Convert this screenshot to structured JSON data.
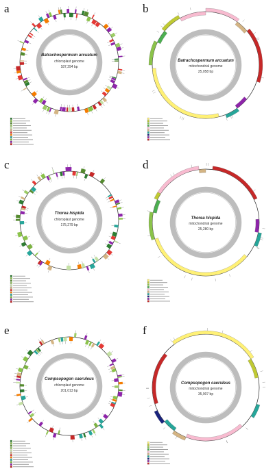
{
  "panels": [
    {
      "letter": "a",
      "species": "Batrachospermum arcuatum",
      "genome": "chloroplast genome",
      "size": "187,294 bp",
      "type": "cp"
    },
    {
      "letter": "b",
      "species": "Batrachospermum arcuatum",
      "genome": "mitochondrial genome",
      "size": "25,058 bp",
      "type": "mt"
    },
    {
      "letter": "c",
      "species": "Thorea hispida",
      "genome": "chloroplast genome",
      "size": "175,279 bp",
      "type": "cp"
    },
    {
      "letter": "d",
      "species": "Thorea hispida",
      "genome": "mitochondrial genome",
      "size": "25,280 bp",
      "type": "mt"
    },
    {
      "letter": "e",
      "species": "Compsopogon caeruleus",
      "genome": "chloroplast genome",
      "size": "201,013 bp",
      "type": "cp"
    },
    {
      "letter": "f",
      "species": "Compsopogon caeruleus",
      "genome": "mitochondrial genome",
      "size": "35,907 bp",
      "type": "mt"
    }
  ],
  "colors": {
    "photosystem_i": "#2e7d32",
    "photosystem_ii": "#8bc34a",
    "cytochrome": "#558b2f",
    "atp_synthase": "#9ccc65",
    "rubisco": "#c5e1a5",
    "ribosomal": "#d4b483",
    "rna_polymerase": "#e53935",
    "clpp_matk": "#f57c00",
    "other": "#26a69a",
    "hypothetical": "#7cb342",
    "trna": "#8e24aa",
    "rrna": "#c62828",
    "complex_i": "#fff176",
    "complex_iii": "#c0ca33",
    "complex_iv": "#8bc34a",
    "complex_v": "#4caf50",
    "ribosomal_large": "#f8bbd0",
    "orf": "#1a237e",
    "inner_ring": "#bdbdbd"
  }
}
